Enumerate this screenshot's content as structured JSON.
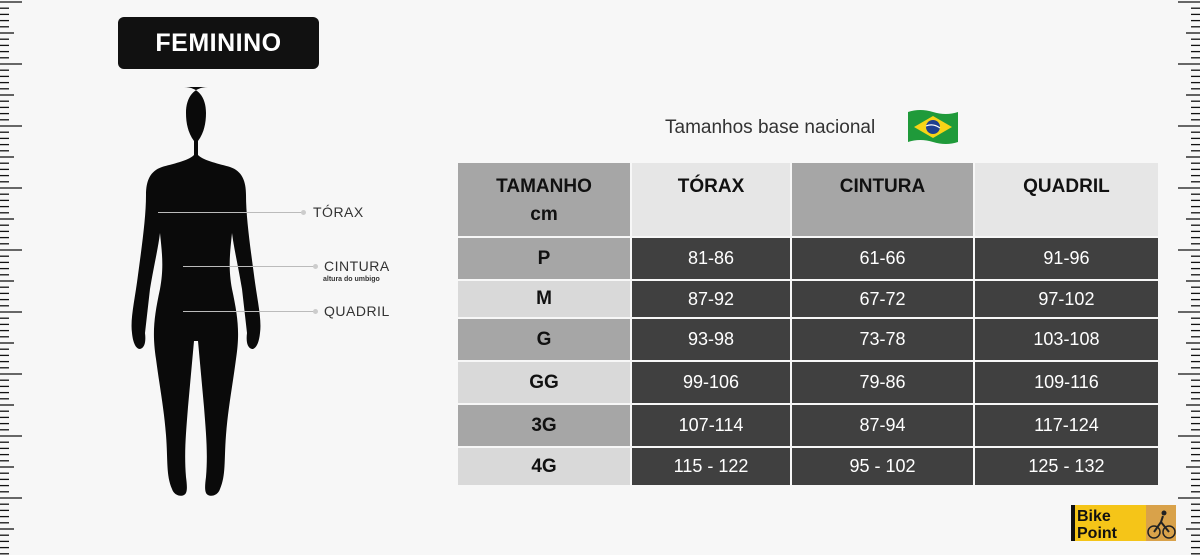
{
  "badge": "FEMININO",
  "measures": {
    "torax": "TÓRAX",
    "cintura": "CINTURA",
    "cintura_note": "altura do umbigo",
    "quadril": "QUADRIL"
  },
  "subtitle": "Tamanhos base nacional",
  "flag_icon": "brazil-flag-icon",
  "table": {
    "headers": [
      "TAMANHO",
      "cm",
      "TÓRAX",
      "CINTURA",
      "QUADRIL"
    ],
    "rows": [
      [
        "P",
        "81-86",
        "61-66",
        "91-96"
      ],
      [
        "M",
        "87-92",
        "67-72",
        "97-102"
      ],
      [
        "G",
        "93-98",
        "73-78",
        "103-108"
      ],
      [
        "GG",
        "99-106",
        "79-86",
        "109-116"
      ],
      [
        "3G",
        "107-114",
        "87-94",
        "117-124"
      ],
      [
        "4G",
        "115 - 122",
        "95 - 102",
        "125 - 132"
      ]
    ]
  },
  "logo": {
    "line1": "Bike",
    "line2": "Point"
  },
  "colors": {
    "dark_cell": "#404040",
    "header_dark": "#a6a6a6",
    "header_light": "#e6e6e6",
    "logo_yellow": "#f5c518"
  }
}
